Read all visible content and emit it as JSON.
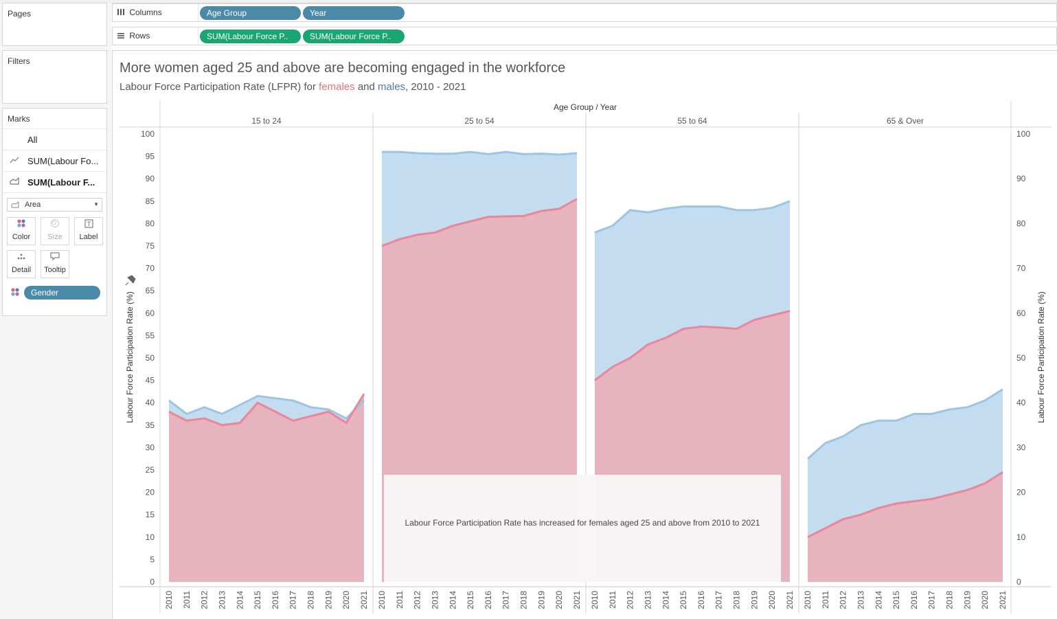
{
  "left_pane": {
    "pages_label": "Pages",
    "filters_label": "Filters",
    "marks_label": "Marks",
    "marks_rows": [
      "All",
      "SUM(Labour Fo...",
      "SUM(Labour F..."
    ],
    "mark_type": "Area",
    "buttons": {
      "color": "Color",
      "size": "Size",
      "label": "Label",
      "detail": "Detail",
      "tooltip": "Tooltip"
    },
    "gender_pill": "Gender"
  },
  "shelves": {
    "columns_label": "Columns",
    "rows_label": "Rows",
    "columns_pills": [
      "Age Group",
      "Year"
    ],
    "rows_pills": [
      "SUM(Labour Force P..",
      "SUM(Labour Force P.."
    ]
  },
  "colors": {
    "female": "#e6b3bf",
    "female_line": "#e8879a",
    "male": "#c4dcf0",
    "male_line": "#9cc4e4",
    "pill_blue": "#4a8aa8",
    "pill_green": "#1aa673"
  },
  "header": {
    "title": "More women aged 25 and above are becoming engaged in the workforce",
    "subtitle_prefix": "Labour Force Participation Rate (LFPR)  for ",
    "subtitle_female": "females",
    "subtitle_and": " and ",
    "subtitle_male": "males",
    "subtitle_suffix": ", 2010 - 2021"
  },
  "annotation": "Labour Force Participation Rate has increased for females aged 25 and above from 2010 to 2021",
  "chart_data": {
    "type": "area",
    "top_header": "Age Group  /  Year",
    "ylabel": "Labour Force Participation Rate (%)",
    "ylim_left": [
      0,
      100
    ],
    "ylim_right": [
      0,
      100
    ],
    "left_ticks": [
      "0",
      "5",
      "10",
      "15",
      "20",
      "25",
      "30",
      "35",
      "40",
      "45",
      "50",
      "55",
      "60",
      "65",
      "70",
      "75",
      "80",
      "85",
      "90",
      "95",
      "100"
    ],
    "right_ticks": [
      "0",
      "10",
      "20",
      "30",
      "40",
      "50",
      "60",
      "70",
      "80",
      "90",
      "100"
    ],
    "years": [
      "2010",
      "2011",
      "2012",
      "2013",
      "2014",
      "2015",
      "2016",
      "2017",
      "2018",
      "2019",
      "2020",
      "2021"
    ],
    "panels": [
      {
        "group": "15 to 24",
        "series": [
          {
            "name": "males",
            "values": [
              40.5,
              37.5,
              39,
              37.5,
              39.5,
              41.5,
              41,
              40.5,
              39,
              38.5,
              36.5,
              40.5
            ]
          },
          {
            "name": "females",
            "values": [
              38,
              36,
              36.5,
              35,
              35.5,
              40,
              38,
              36,
              37,
              38,
              35.5,
              42
            ]
          }
        ]
      },
      {
        "group": "25 to 54",
        "series": [
          {
            "name": "males",
            "values": [
              96,
              96,
              95.7,
              95.6,
              95.6,
              96,
              95.5,
              96,
              95.5,
              95.6,
              95.4,
              95.7
            ]
          },
          {
            "name": "females",
            "values": [
              75,
              76.5,
              77.5,
              78,
              79.5,
              80.5,
              81.5,
              81.6,
              81.7,
              82.8,
              83.3,
              85.5
            ]
          }
        ]
      },
      {
        "group": "55 to 64",
        "series": [
          {
            "name": "males",
            "values": [
              78,
              79.5,
              83,
              82.5,
              83.3,
              83.8,
              83.8,
              83.8,
              83,
              83,
              83.5,
              85
            ]
          },
          {
            "name": "females",
            "values": [
              45,
              48,
              50,
              53,
              54.5,
              56.5,
              57,
              56.8,
              56.5,
              58.5,
              59.5,
              60.5
            ]
          }
        ]
      },
      {
        "group": "65 & Over",
        "series": [
          {
            "name": "males",
            "values": [
              27.5,
              31,
              32.5,
              35,
              36,
              36,
              37.5,
              37.5,
              38.5,
              39,
              40.5,
              43
            ]
          },
          {
            "name": "females",
            "values": [
              10,
              12,
              14,
              15,
              16.5,
              17.5,
              18,
              18.5,
              19.5,
              20.5,
              22,
              24.5
            ]
          }
        ]
      }
    ]
  }
}
